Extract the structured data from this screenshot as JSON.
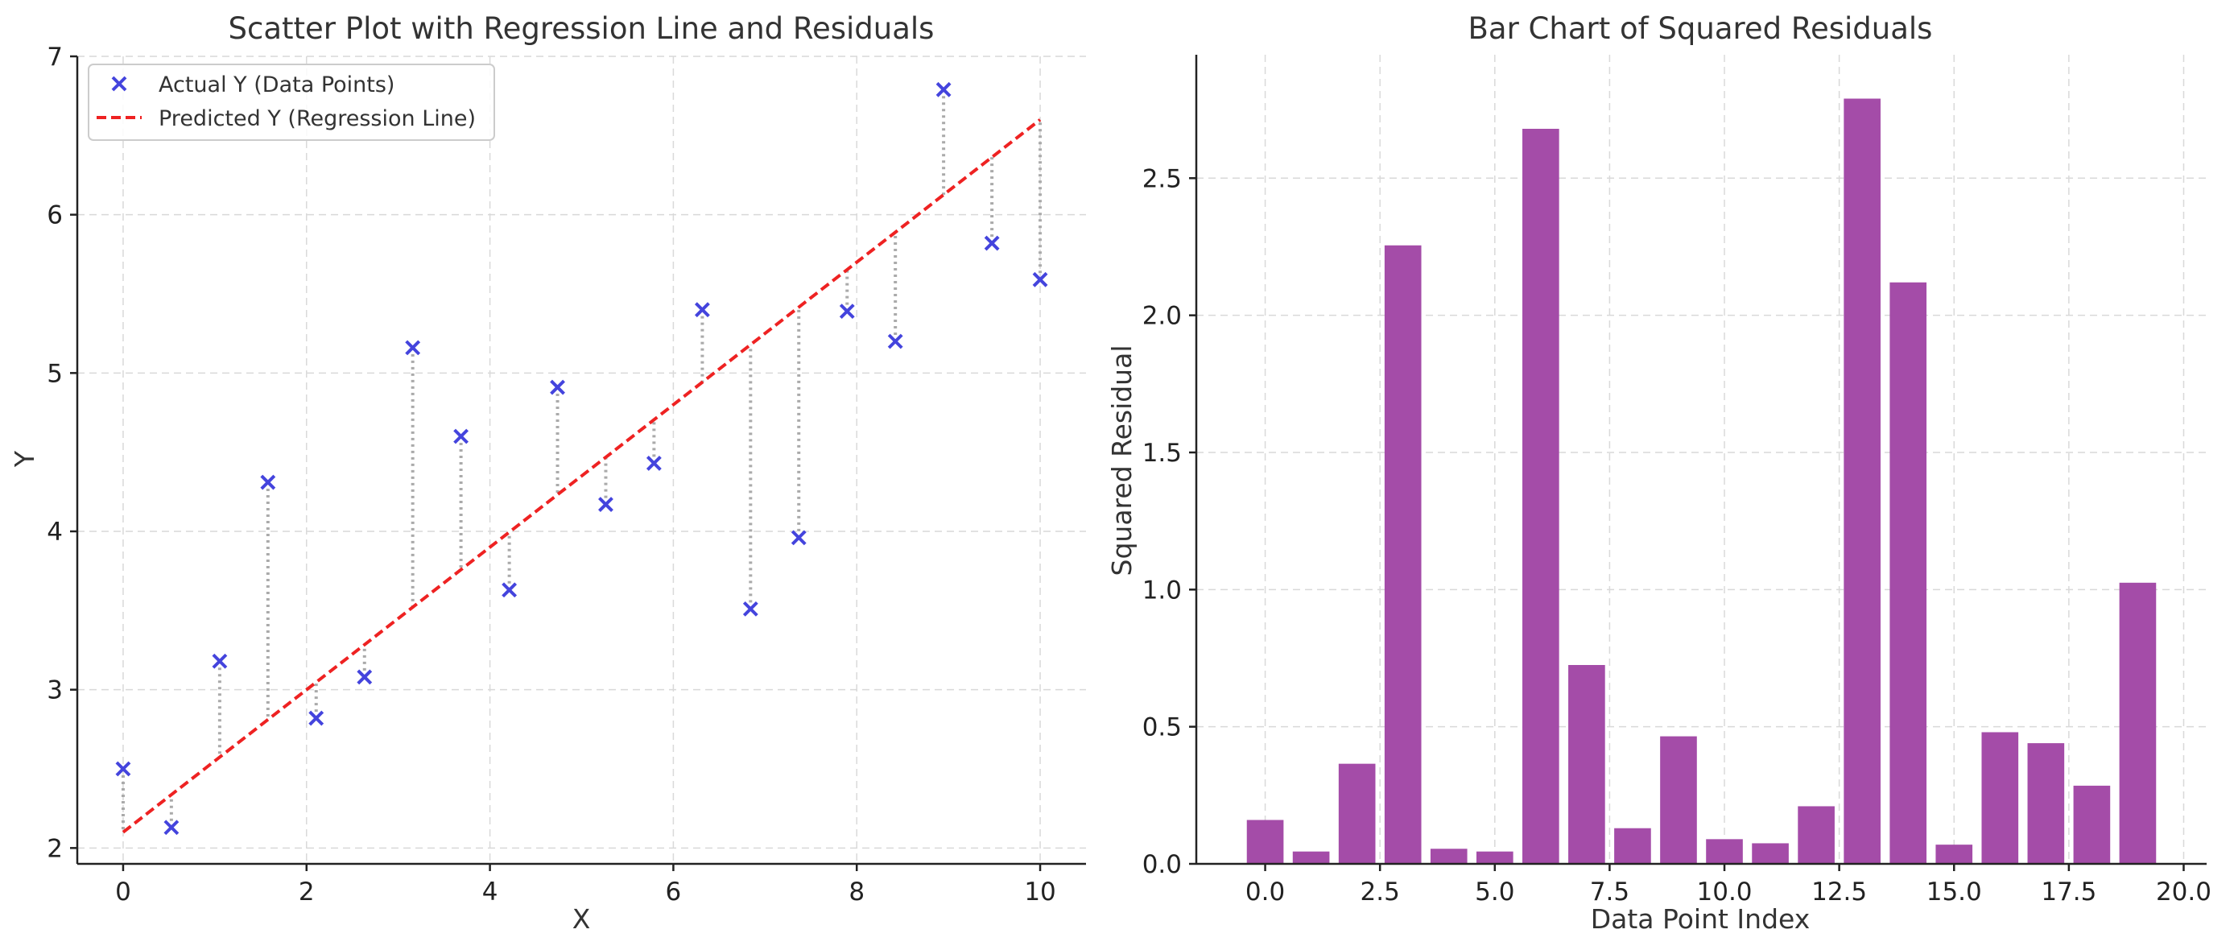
{
  "colors": {
    "points": "#4444dd",
    "regression": "#ee2222",
    "residual": "#aaaaaa",
    "bars": "#a44ca8"
  },
  "chart_data": [
    {
      "type": "scatter",
      "title": "Scatter Plot with Regression Line and Residuals",
      "xlabel": "X",
      "ylabel": "Y",
      "xlim": [
        -0.5,
        10.5
      ],
      "ylim": [
        1.9,
        7.0
      ],
      "xticks": [
        0,
        2,
        4,
        6,
        8,
        10
      ],
      "yticks": [
        2,
        3,
        4,
        5,
        6,
        7
      ],
      "grid": true,
      "legend_position": "top-left",
      "series": [
        {
          "name": "Actual Y (Data Points)",
          "marker": "x",
          "x": [
            0.0,
            0.526,
            1.053,
            1.579,
            2.105,
            2.632,
            3.158,
            3.684,
            4.211,
            4.737,
            5.263,
            5.789,
            6.316,
            6.842,
            7.368,
            7.895,
            8.421,
            8.947,
            9.474,
            10.0
          ],
          "y": [
            2.5,
            2.13,
            3.18,
            4.31,
            2.82,
            3.08,
            5.16,
            4.6,
            3.63,
            4.91,
            4.17,
            4.43,
            5.4,
            3.51,
            3.96,
            5.39,
            5.2,
            6.79,
            5.82,
            5.59
          ]
        },
        {
          "name": "Predicted Y (Regression Line)",
          "style": "dashed-line",
          "x": [
            0.0,
            0.526,
            1.053,
            1.579,
            2.105,
            2.632,
            3.158,
            3.684,
            4.211,
            4.737,
            5.263,
            5.789,
            6.316,
            6.842,
            7.368,
            7.895,
            8.421,
            8.947,
            9.474,
            10.0
          ],
          "y": [
            2.1,
            2.337,
            2.574,
            2.811,
            3.047,
            3.284,
            3.521,
            3.758,
            3.995,
            4.232,
            4.468,
            4.705,
            4.942,
            5.179,
            5.416,
            5.653,
            5.889,
            6.126,
            6.363,
            6.6
          ]
        }
      ]
    },
    {
      "type": "bar",
      "title": "Bar Chart of Squared Residuals",
      "xlabel": "Data Point Index",
      "ylabel": "Squared Residual",
      "xlim": [
        -1.5,
        20.5
      ],
      "ylim": [
        0,
        2.95
      ],
      "xticks": [
        0.0,
        2.5,
        5.0,
        7.5,
        10.0,
        12.5,
        15.0,
        17.5,
        20.0
      ],
      "yticks": [
        0.0,
        0.5,
        1.0,
        1.5,
        2.0,
        2.5
      ],
      "grid": true,
      "categories": [
        0,
        1,
        2,
        3,
        4,
        5,
        6,
        7,
        8,
        9,
        10,
        11,
        12,
        13,
        14,
        15,
        16,
        17,
        18,
        19
      ],
      "values": [
        0.16,
        0.045,
        0.365,
        2.255,
        0.055,
        0.045,
        2.68,
        0.725,
        0.13,
        0.465,
        0.09,
        0.075,
        0.21,
        2.79,
        2.12,
        0.07,
        0.48,
        0.44,
        0.285,
        1.025
      ]
    }
  ]
}
